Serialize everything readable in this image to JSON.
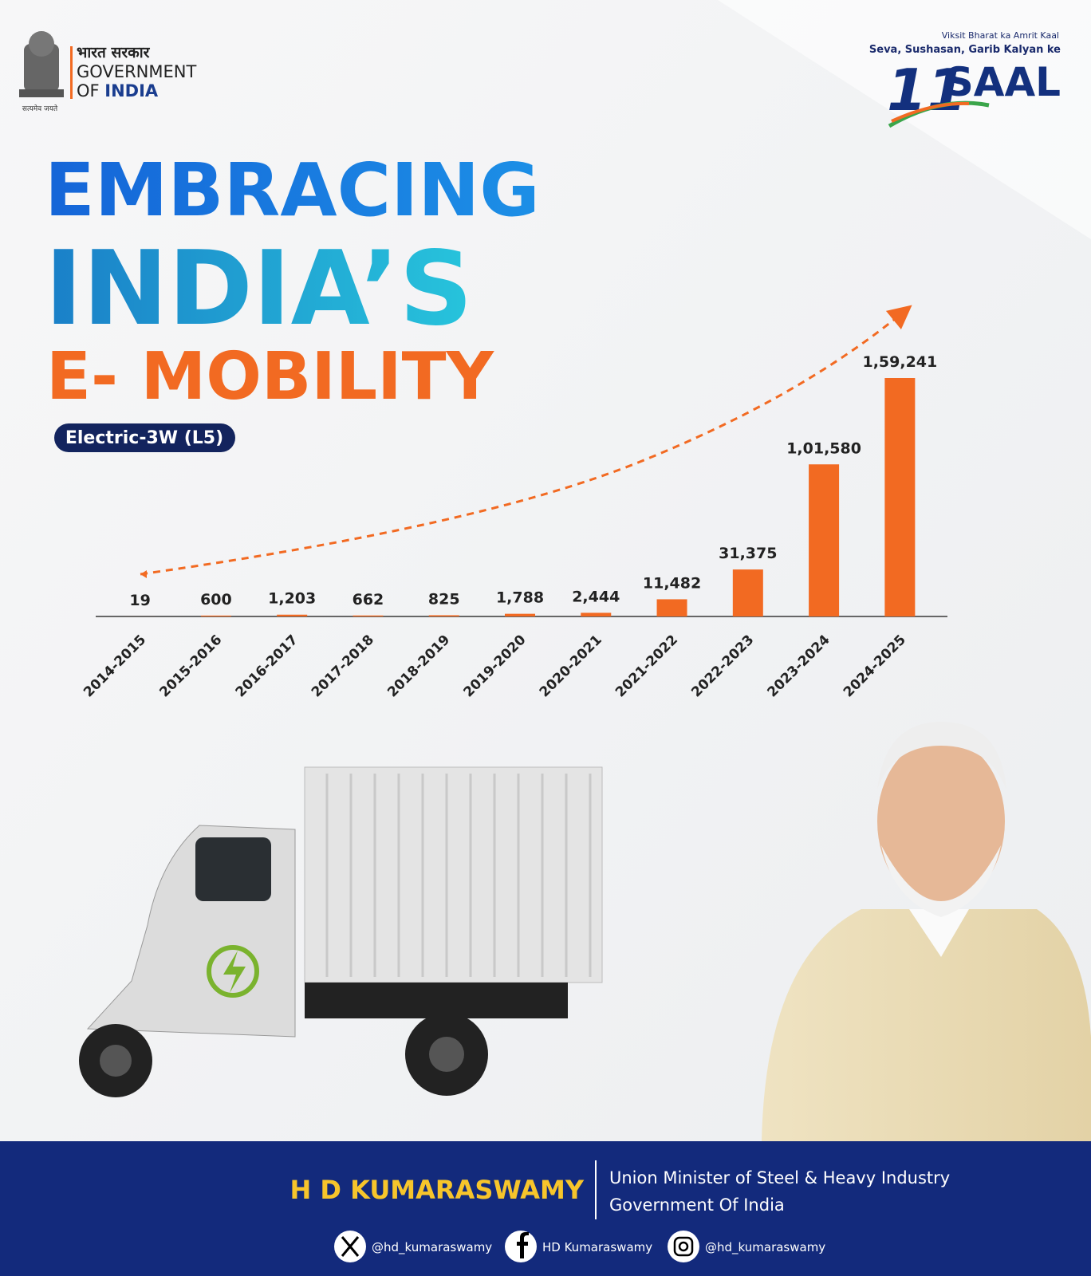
{
  "header": {
    "emblem_motto": "सत्यमेव जयते",
    "gov_hindi": "भारत सरकार",
    "gov_line1": "GOVERNMENT",
    "gov_of": "OF",
    "gov_india": "INDIA"
  },
  "badge": {
    "tagline": "Viksit Bharat ka Amrit Kaal",
    "subtitle": "Seva, Sushasan, Garib Kalyan ke",
    "number": "11",
    "word": "SAAL"
  },
  "chart_data": {
    "type": "bar",
    "title": [
      "EMBRACING",
      "INDIA’S",
      "E- MOBILITY"
    ],
    "subtitle": "Electric-3W (L5)",
    "categories": [
      "2014-2015",
      "2015-2016",
      "2016-2017",
      "2017-2018",
      "2018-2019",
      "2019-2020",
      "2020-2021",
      "2021-2022",
      "2022-2023",
      "2023-2024",
      "2024-2025"
    ],
    "values": [
      19,
      600,
      1203,
      662,
      825,
      1788,
      2444,
      11482,
      31375,
      101580,
      159241
    ],
    "value_labels": [
      "19",
      "600",
      "1,203",
      "662",
      "825",
      "1,788",
      "2,444",
      "11,482",
      "31,375",
      "1,01,580",
      "1,59,241"
    ],
    "color": "#f26a22"
  },
  "footer": {
    "name": "H D KUMARASWAMY",
    "role": "Union Minister of Steel & Heavy Industry",
    "org": "Government Of India",
    "social": [
      "@hd_kumaraswamy",
      "HD Kumaraswamy",
      "@hd_kumaraswamy"
    ]
  }
}
